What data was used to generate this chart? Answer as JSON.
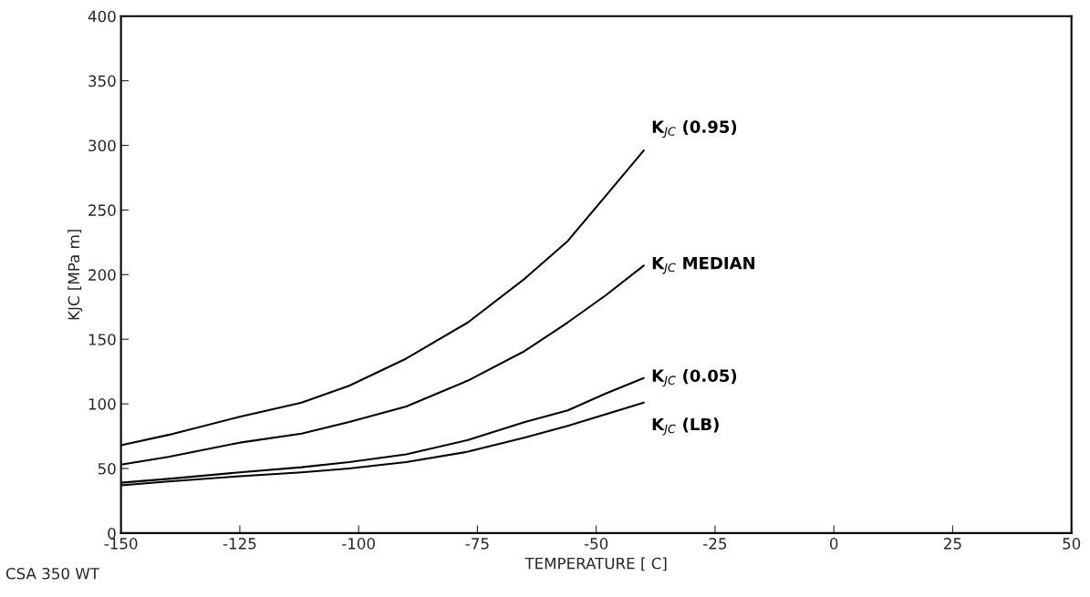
{
  "chart_data": {
    "type": "line",
    "xlabel": "TEMPERATURE [ C]",
    "ylabel": "KJC [MPa m]",
    "xlim": [
      -150,
      50
    ],
    "xticks": [
      -150,
      -125,
      -100,
      -75,
      -50,
      -25,
      0,
      25,
      50
    ],
    "ylim": [
      0,
      400
    ],
    "yticks": [
      0,
      50,
      100,
      150,
      200,
      250,
      300,
      350,
      400
    ],
    "grid": false,
    "legend": false,
    "marker": "none",
    "line_style": "solid",
    "annotations": [
      "CSA 350 WT"
    ],
    "series": [
      {
        "name": "K$_{JC}$ (0.95)",
        "color": "#000000",
        "x": [
          -150,
          -140,
          -125,
          -112,
          -102,
          -90,
          -77,
          -65,
          -56,
          -48,
          -40
        ],
        "values": [
          68,
          76,
          90,
          101,
          114,
          135,
          163,
          197,
          226,
          261,
          296
        ]
      },
      {
        "name": "K$_{JC}$ MEDIAN",
        "color": "#000000",
        "x": [
          -150,
          -140,
          -125,
          -112,
          -102,
          -90,
          -77,
          -65,
          -56,
          -48,
          -40
        ],
        "values": [
          53,
          59,
          70,
          77,
          86,
          98,
          118,
          141,
          163,
          184,
          207
        ]
      },
      {
        "name": "K$_{JC}$ (0.05)",
        "color": "#000000",
        "x": [
          -150,
          -140,
          -125,
          -112,
          -102,
          -90,
          -77,
          -65,
          -56,
          -48,
          -40
        ],
        "values": [
          39,
          42,
          47,
          51,
          55,
          61,
          72,
          86,
          95,
          108,
          120
        ]
      },
      {
        "name": "K$_{JC}$ (LB)",
        "color": "#000000",
        "x": [
          -150,
          -140,
          -125,
          -112,
          -102,
          -90,
          -77,
          -65,
          -56,
          -48,
          -40
        ],
        "values": [
          37,
          40,
          44,
          47,
          50,
          55,
          63,
          74,
          83,
          92,
          101
        ]
      }
    ]
  }
}
